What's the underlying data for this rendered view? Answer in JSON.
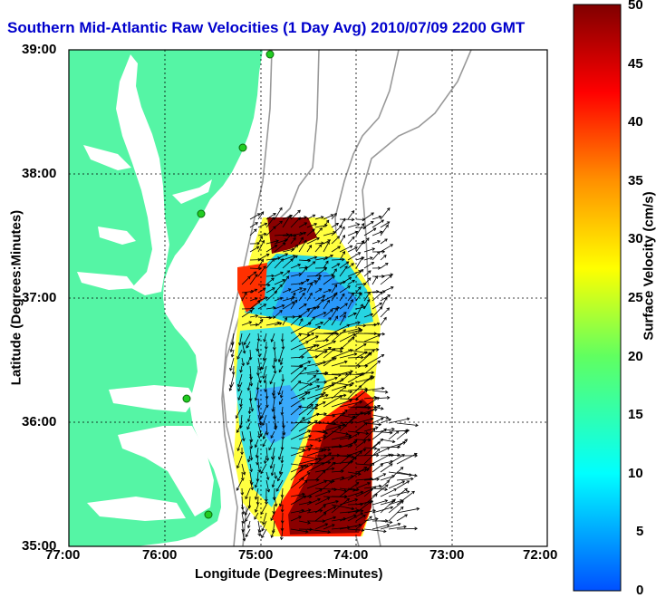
{
  "title": "Southern Mid-Atlantic Raw Velocities (1 Day Avg) 2010/07/09 2200 GMT",
  "axes": {
    "xlabel": "Longitude (Degrees:Minutes)",
    "ylabel": "Latitude (Degrees:Minutes)",
    "x_ticks": [
      "77:00",
      "76:00",
      "75:00",
      "74:00",
      "73:00",
      "72:00"
    ],
    "y_ticks": [
      "39:00",
      "38:00",
      "37:00",
      "36:00",
      "35:00"
    ]
  },
  "colorbar": {
    "label": "Surface Velocity (cm/s)",
    "ticks": [
      "50",
      "45",
      "40",
      "35",
      "30",
      "25",
      "20",
      "15",
      "10",
      "5",
      "0"
    ],
    "range": [
      0,
      50
    ]
  },
  "colors": {
    "land": "#55f5a5",
    "title": "#0000cc",
    "contour": "#999999",
    "station": "#22cc22"
  },
  "map_extent": {
    "lon": [
      -77,
      -72
    ],
    "lat": [
      35,
      39
    ]
  }
}
